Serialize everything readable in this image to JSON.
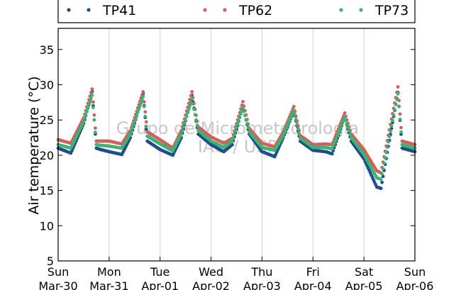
{
  "chart_data": {
    "type": "scatter",
    "ylabel": "Air temperature (°C)",
    "ylim": [
      5,
      38
    ],
    "yticks": [
      5,
      10,
      15,
      20,
      25,
      30,
      35
    ],
    "xlim": [
      "2015-03-30T00:00",
      "2015-04-06T00:00"
    ],
    "xticks": [
      {
        "day": "Sun",
        "date": "Mar-30"
      },
      {
        "day": "Mon",
        "date": "Mar-31"
      },
      {
        "day": "Tue",
        "date": "Apr-01"
      },
      {
        "day": "Wed",
        "date": "Apr-02"
      },
      {
        "day": "Thu",
        "date": "Apr-03"
      },
      {
        "day": "Fri",
        "date": "Apr-04"
      },
      {
        "day": "Sat",
        "date": "Apr-05"
      },
      {
        "day": "Sun",
        "date": "Apr-06"
      }
    ],
    "grid": "vertical",
    "legend_position": "top",
    "watermark": [
      "Grupo de Micrometeorologia",
      "IAG / USP"
    ],
    "x": [
      "Mar-30 00:00",
      "Mar-30 06:00",
      "Mar-30 12:00",
      "Mar-30 16:00",
      "Mar-30 18:00",
      "Mar-30 20:00",
      "Mar-31 00:00",
      "Mar-31 06:00",
      "Mar-31 10:00",
      "Mar-31 16:00",
      "Mar-31 18:00",
      "Apr-01 00:00",
      "Apr-01 06:00",
      "Apr-01 10:00",
      "Apr-01 15:00",
      "Apr-01 18:00",
      "Apr-02 00:00",
      "Apr-02 06:00",
      "Apr-02 10:00",
      "Apr-02 15:00",
      "Apr-02 18:00",
      "Apr-03 00:00",
      "Apr-03 06:00",
      "Apr-03 10:00",
      "Apr-03 15:00",
      "Apr-03 18:00",
      "Apr-04 00:00",
      "Apr-04 06:00",
      "Apr-04 09:00",
      "Apr-04 15:00",
      "Apr-04 18:00",
      "Apr-05 00:00",
      "Apr-05 06:00",
      "Apr-05 08:00",
      "Apr-05 16:00",
      "Apr-05 18:00",
      "Apr-06 00:00"
    ],
    "series": [
      {
        "name": "TP41",
        "color": "#1f4e8c",
        "values": [
          21.0,
          20.3,
          24.5,
          29.0,
          21.0,
          20.8,
          20.5,
          20.1,
          22.5,
          28.7,
          22.0,
          20.8,
          20.0,
          22.5,
          28.5,
          23.0,
          21.5,
          20.5,
          21.5,
          27.0,
          23.0,
          20.5,
          19.8,
          22.5,
          26.3,
          22.0,
          20.7,
          20.5,
          20.2,
          25.5,
          22.0,
          19.5,
          15.5,
          15.3,
          28.9,
          21.0,
          20.5
        ]
      },
      {
        "name": "TP62",
        "color": "#d35f5f",
        "values": [
          22.2,
          21.7,
          25.3,
          29.4,
          22.0,
          22.0,
          22.0,
          21.6,
          23.5,
          29.0,
          23.3,
          22.2,
          21.0,
          23.5,
          29.0,
          24.0,
          22.6,
          21.7,
          22.4,
          27.6,
          23.8,
          21.7,
          21.2,
          23.3,
          26.9,
          22.8,
          21.5,
          21.6,
          21.5,
          26.0,
          23.0,
          20.8,
          17.8,
          17.5,
          29.7,
          22.0,
          21.5
        ]
      },
      {
        "name": "TP73",
        "color": "#3cb371",
        "values": [
          21.5,
          21.0,
          24.8,
          28.5,
          21.5,
          21.4,
          21.3,
          21.0,
          23.0,
          28.3,
          22.7,
          21.6,
          20.6,
          23.0,
          28.0,
          23.5,
          22.0,
          21.1,
          22.0,
          26.8,
          23.3,
          21.1,
          20.7,
          22.8,
          26.4,
          22.4,
          21.1,
          21.1,
          20.9,
          25.4,
          22.5,
          20.1,
          16.8,
          16.6,
          28.7,
          21.5,
          21.0
        ]
      }
    ]
  }
}
